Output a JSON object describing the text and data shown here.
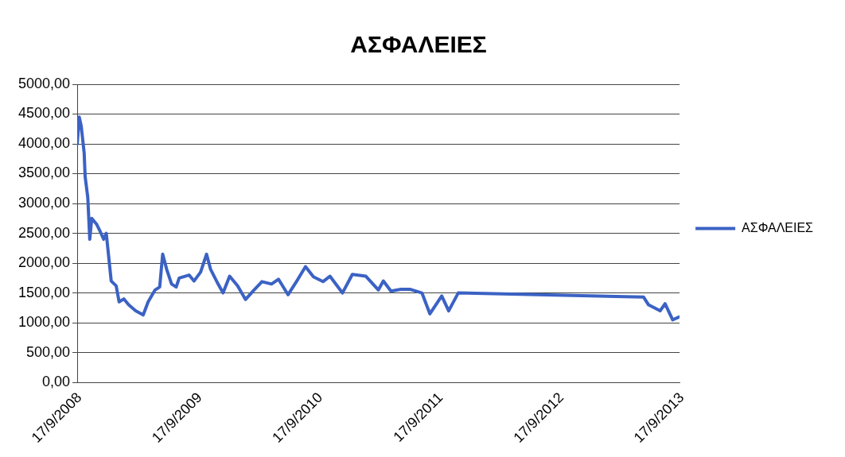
{
  "chart_data": {
    "type": "line",
    "title": "ΑΣΦΑΛΕΙΕΣ",
    "x": [
      "2008-09-17",
      "2008-09-23",
      "2008-09-29",
      "2008-10-08",
      "2008-10-11",
      "2008-10-19",
      "2008-10-25",
      "2008-10-31",
      "2008-11-15",
      "2008-11-24",
      "2008-12-06",
      "2008-12-14",
      "2008-12-29",
      "2009-01-13",
      "2009-01-22",
      "2009-02-05",
      "2009-02-20",
      "2009-03-13",
      "2009-04-05",
      "2009-04-20",
      "2009-05-11",
      "2009-05-25",
      "2009-06-03",
      "2009-06-15",
      "2009-06-30",
      "2009-07-14",
      "2009-07-23",
      "2009-08-22",
      "2009-09-06",
      "2009-09-26",
      "2009-10-14",
      "2009-10-26",
      "2009-11-18",
      "2009-12-03",
      "2009-12-23",
      "2010-01-16",
      "2010-02-09",
      "2010-03-07",
      "2010-03-31",
      "2010-04-29",
      "2010-05-20",
      "2010-06-18",
      "2010-07-18",
      "2010-08-10",
      "2010-09-03",
      "2010-10-02",
      "2010-10-23",
      "2010-11-30",
      "2010-12-30",
      "2011-02-09",
      "2011-03-19",
      "2011-04-03",
      "2011-04-26",
      "2011-05-26",
      "2011-06-24",
      "2011-07-29",
      "2011-08-22",
      "2011-09-27",
      "2011-10-18",
      "2011-11-16",
      "2013-05-31",
      "2013-06-15",
      "2013-07-20",
      "2013-08-04",
      "2013-08-27",
      "2013-09-17"
    ],
    "series": [
      {
        "name": "ΑΣΦΑΛΕΙΕΣ",
        "color": "#3b62c4",
        "values": [
          4000,
          4450,
          4300,
          3850,
          3450,
          3100,
          2400,
          2750,
          2650,
          2550,
          2400,
          2500,
          1700,
          1620,
          1350,
          1400,
          1300,
          1200,
          1130,
          1350,
          1550,
          1600,
          2150,
          1900,
          1650,
          1600,
          1750,
          1800,
          1700,
          1850,
          2150,
          1900,
          1650,
          1500,
          1780,
          1620,
          1390,
          1550,
          1690,
          1650,
          1730,
          1470,
          1730,
          1940,
          1770,
          1690,
          1780,
          1500,
          1810,
          1780,
          1550,
          1700,
          1530,
          1560,
          1560,
          1500,
          1150,
          1450,
          1200,
          1500,
          1430,
          1300,
          1200,
          1320,
          1050,
          1100
        ]
      }
    ],
    "xlim": [
      "2008-09-17",
      "2013-09-17"
    ],
    "xticks": [
      {
        "value": "2008-09-17",
        "label": "17/9/2008"
      },
      {
        "value": "2009-09-17",
        "label": "17/9/2009"
      },
      {
        "value": "2010-09-17",
        "label": "17/9/2010"
      },
      {
        "value": "2011-09-17",
        "label": "17/9/2011"
      },
      {
        "value": "2012-09-17",
        "label": "17/9/2012"
      },
      {
        "value": "2013-09-17",
        "label": "17/9/2013"
      }
    ],
    "ylim": [
      0,
      5000
    ],
    "yticks": [
      {
        "value": 0,
        "label": "0,00"
      },
      {
        "value": 500,
        "label": "500,00"
      },
      {
        "value": 1000,
        "label": "1000,00"
      },
      {
        "value": 1500,
        "label": "1500,00"
      },
      {
        "value": 2000,
        "label": "2000,00"
      },
      {
        "value": 2500,
        "label": "2500,00"
      },
      {
        "value": 3000,
        "label": "3000,00"
      },
      {
        "value": 3500,
        "label": "3500,00"
      },
      {
        "value": 4000,
        "label": "4000,00"
      },
      {
        "value": 4500,
        "label": "4500,00"
      },
      {
        "value": 5000,
        "label": "5000,00"
      }
    ],
    "grid": "y",
    "legend": "right",
    "marker": "none",
    "line_style": "solid"
  }
}
